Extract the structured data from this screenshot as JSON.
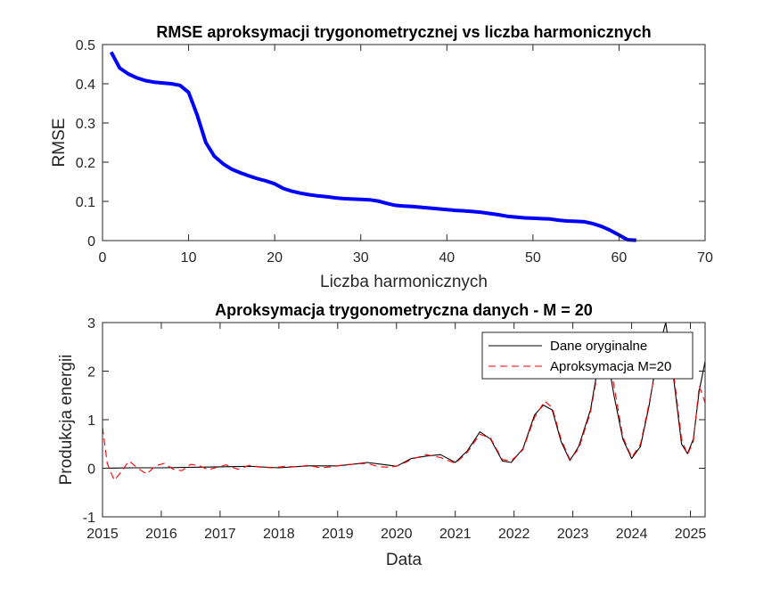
{
  "chart_data": [
    {
      "type": "line",
      "title": "RMSE aproksymacji trygonometrycznej vs liczba harmonicznych",
      "xlabel": "Liczba harmonicznych",
      "ylabel": "RMSE",
      "xlim": [
        0,
        70
      ],
      "ylim": [
        0,
        0.5
      ],
      "xticks": [
        "0",
        "10",
        "20",
        "30",
        "40",
        "50",
        "60",
        "70"
      ],
      "yticks": [
        "0",
        "0.1",
        "0.2",
        "0.3",
        "0.4",
        "0.5"
      ],
      "grid": false,
      "color": "#0000ff",
      "x": [
        1,
        2,
        3,
        4,
        5,
        6,
        7,
        8,
        9,
        10,
        11,
        12,
        13,
        14,
        15,
        16,
        17,
        18,
        19,
        20,
        21,
        22,
        23,
        24,
        25,
        26,
        27,
        28,
        29,
        30,
        31,
        32,
        33,
        34,
        35,
        36,
        37,
        38,
        39,
        40,
        41,
        42,
        43,
        44,
        45,
        46,
        47,
        48,
        49,
        50,
        51,
        52,
        53,
        54,
        55,
        56,
        57,
        58,
        59,
        60,
        61,
        62
      ],
      "y": [
        0.481,
        0.44,
        0.425,
        0.415,
        0.408,
        0.404,
        0.402,
        0.4,
        0.396,
        0.378,
        0.32,
        0.25,
        0.215,
        0.196,
        0.182,
        0.173,
        0.165,
        0.158,
        0.152,
        0.145,
        0.133,
        0.126,
        0.121,
        0.117,
        0.114,
        0.112,
        0.109,
        0.107,
        0.106,
        0.105,
        0.104,
        0.101,
        0.095,
        0.09,
        0.088,
        0.087,
        0.085,
        0.083,
        0.081,
        0.079,
        0.077,
        0.076,
        0.074,
        0.072,
        0.069,
        0.066,
        0.062,
        0.06,
        0.058,
        0.057,
        0.056,
        0.055,
        0.052,
        0.05,
        0.049,
        0.048,
        0.043,
        0.036,
        0.026,
        0.014,
        0.002,
        0.001
      ]
    },
    {
      "type": "line",
      "title": "Aproksymacja trygonometryczna danych - M = 20",
      "xlabel": "Data",
      "ylabel": "Produkcja energii",
      "xlim": [
        2015,
        2025.25
      ],
      "ylim": [
        -1,
        3
      ],
      "xticks": [
        "2015",
        "2016",
        "2017",
        "2018",
        "2019",
        "2020",
        "2021",
        "2022",
        "2023",
        "2024",
        "2025"
      ],
      "yticks": [
        "-1",
        "0",
        "1",
        "2",
        "3"
      ],
      "grid": false,
      "legend": {
        "location": "top-right",
        "entries": [
          "Dane oryginalne",
          "Aproksymacja M=20"
        ]
      },
      "series": [
        {
          "name": "Dane oryginalne",
          "color": "#000000",
          "style": "solid",
          "x": [
            2015,
            2015.5,
            2016,
            2016.5,
            2017,
            2017.5,
            2018,
            2018.5,
            2019,
            2019.25,
            2019.5,
            2019.75,
            2020,
            2020.25,
            2020.5,
            2020.75,
            2021,
            2021.2,
            2021.42,
            2021.6,
            2021.8,
            2021.95,
            2022.15,
            2022.35,
            2022.5,
            2022.65,
            2022.8,
            2022.95,
            2023.1,
            2023.3,
            2023.5,
            2023.6,
            2023.7,
            2023.85,
            2024,
            2024.15,
            2024.3,
            2024.45,
            2024.58,
            2024.7,
            2024.85,
            2024.95,
            2025.05,
            2025.15,
            2025.25
          ],
          "y": [
            0.0,
            0.01,
            0.01,
            0.02,
            0.03,
            0.04,
            0.01,
            0.05,
            0.05,
            0.08,
            0.12,
            0.08,
            0.04,
            0.2,
            0.25,
            0.28,
            0.12,
            0.35,
            0.75,
            0.6,
            0.15,
            0.12,
            0.4,
            1.1,
            1.3,
            1.2,
            0.55,
            0.16,
            0.45,
            1.2,
            2.6,
            2.2,
            1.5,
            0.6,
            0.2,
            0.45,
            1.3,
            2.4,
            3.0,
            2.0,
            0.5,
            0.3,
            0.6,
            1.6,
            2.2
          ]
        },
        {
          "name": "Aproksymacja M=20",
          "color": "#ff0000",
          "style": "dashed",
          "x": [
            2015,
            2015.08,
            2015.2,
            2015.3,
            2015.45,
            2015.6,
            2015.75,
            2015.9,
            2016.05,
            2016.2,
            2016.35,
            2016.5,
            2016.65,
            2016.8,
            2016.95,
            2017.1,
            2017.3,
            2017.5,
            2017.7,
            2017.9,
            2018.1,
            2018.3,
            2018.5,
            2018.7,
            2018.9,
            2019.1,
            2019.3,
            2019.5,
            2019.7,
            2019.9,
            2020.05,
            2020.25,
            2020.5,
            2020.75,
            2021,
            2021.2,
            2021.42,
            2021.6,
            2021.8,
            2021.95,
            2022.15,
            2022.35,
            2022.52,
            2022.65,
            2022.8,
            2022.95,
            2023.1,
            2023.3,
            2023.5,
            2023.6,
            2023.7,
            2023.85,
            2024,
            2024.15,
            2024.3,
            2024.45,
            2024.58,
            2024.7,
            2024.85,
            2024.95,
            2025.05,
            2025.15,
            2025.25
          ],
          "y": [
            0.85,
            0.1,
            -0.25,
            -0.1,
            0.15,
            0.0,
            -0.12,
            0.05,
            0.1,
            -0.02,
            -0.05,
            0.08,
            0.05,
            -0.03,
            0.02,
            0.07,
            -0.02,
            0.06,
            0.02,
            0.01,
            0.04,
            0.03,
            0.06,
            0.01,
            0.03,
            0.07,
            0.09,
            0.1,
            0.03,
            0.02,
            0.06,
            0.18,
            0.28,
            0.22,
            0.1,
            0.32,
            0.7,
            0.62,
            0.18,
            0.15,
            0.38,
            1.05,
            1.38,
            1.25,
            0.6,
            0.18,
            0.4,
            1.15,
            2.5,
            2.4,
            1.7,
            0.65,
            0.22,
            0.5,
            1.35,
            2.3,
            2.8,
            2.1,
            0.6,
            0.28,
            0.55,
            1.7,
            1.35
          ]
        }
      ]
    }
  ]
}
